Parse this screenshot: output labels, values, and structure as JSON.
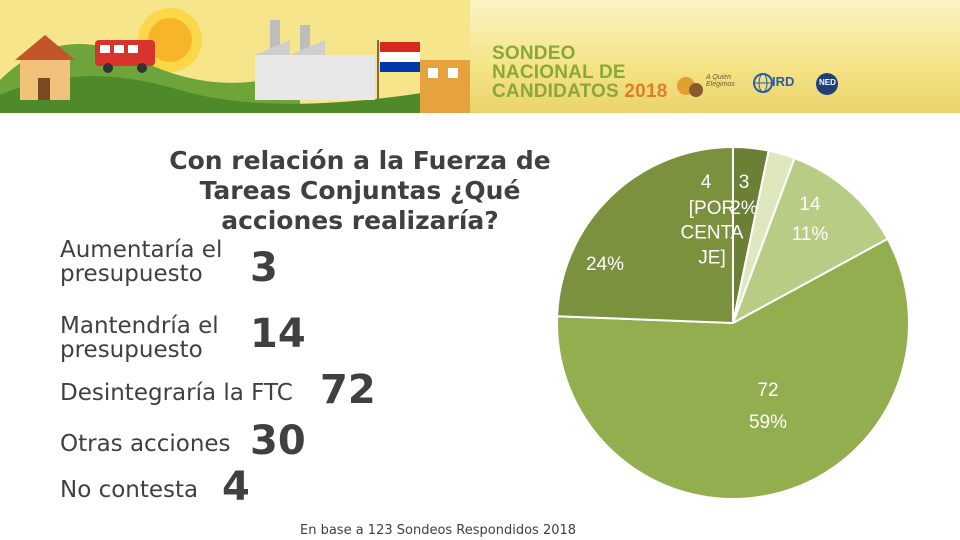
{
  "banner": {
    "title_line1": "SONDEO",
    "title_line2": "NACIONAL DE",
    "title_line3": "CANDIDATOS",
    "title_year": "2018",
    "logo1": "A Quién Elegimos",
    "logo2": "IRD",
    "logo3": "NED",
    "title_color": "#8aa83a",
    "year_color": "#e37b28"
  },
  "question": "Con relación a la Fuerza de Tareas Conjuntas ¿Qué acciones realizaría?",
  "categories": [
    {
      "label": "Aumentaría el presupuesto",
      "value_text": "3"
    },
    {
      "label": "Mantendría el presupuesto",
      "value_text": "14"
    },
    {
      "label": "Desintegraría la FTC",
      "value_text": "72"
    },
    {
      "label": "Otras acciones",
      "value_text": "30"
    },
    {
      "label": "No contesta",
      "value_text": "4"
    }
  ],
  "footnote": "En base a 123 Sondeos Respondidos 2018",
  "chart_data": {
    "type": "pie",
    "title": "Con relación a la Fuerza de Tareas Conjuntas ¿Qué acciones realizaría?",
    "slices": [
      {
        "category": "No contesta",
        "value": 4,
        "value_label": "4",
        "percent_label": "[PORCENTAJE]",
        "color": "#6b7f35"
      },
      {
        "category": "Aumentaría el presupuesto",
        "value": 3,
        "value_label": "3",
        "percent_label": "2%",
        "color": "#dfe7bf"
      },
      {
        "category": "Mantendría el presupuesto",
        "value": 14,
        "value_label": "14",
        "percent_label": "11%",
        "color": "#b8cc86"
      },
      {
        "category": "Desintegraría la FTC",
        "value": 72,
        "value_label": "72",
        "percent_label": "59%",
        "color": "#92ae4f"
      },
      {
        "category": "Otras acciones",
        "value": 30,
        "value_label": "",
        "percent_label": "24%",
        "color": "#7b913e"
      }
    ],
    "total_respondents": 123,
    "legend": "none"
  }
}
